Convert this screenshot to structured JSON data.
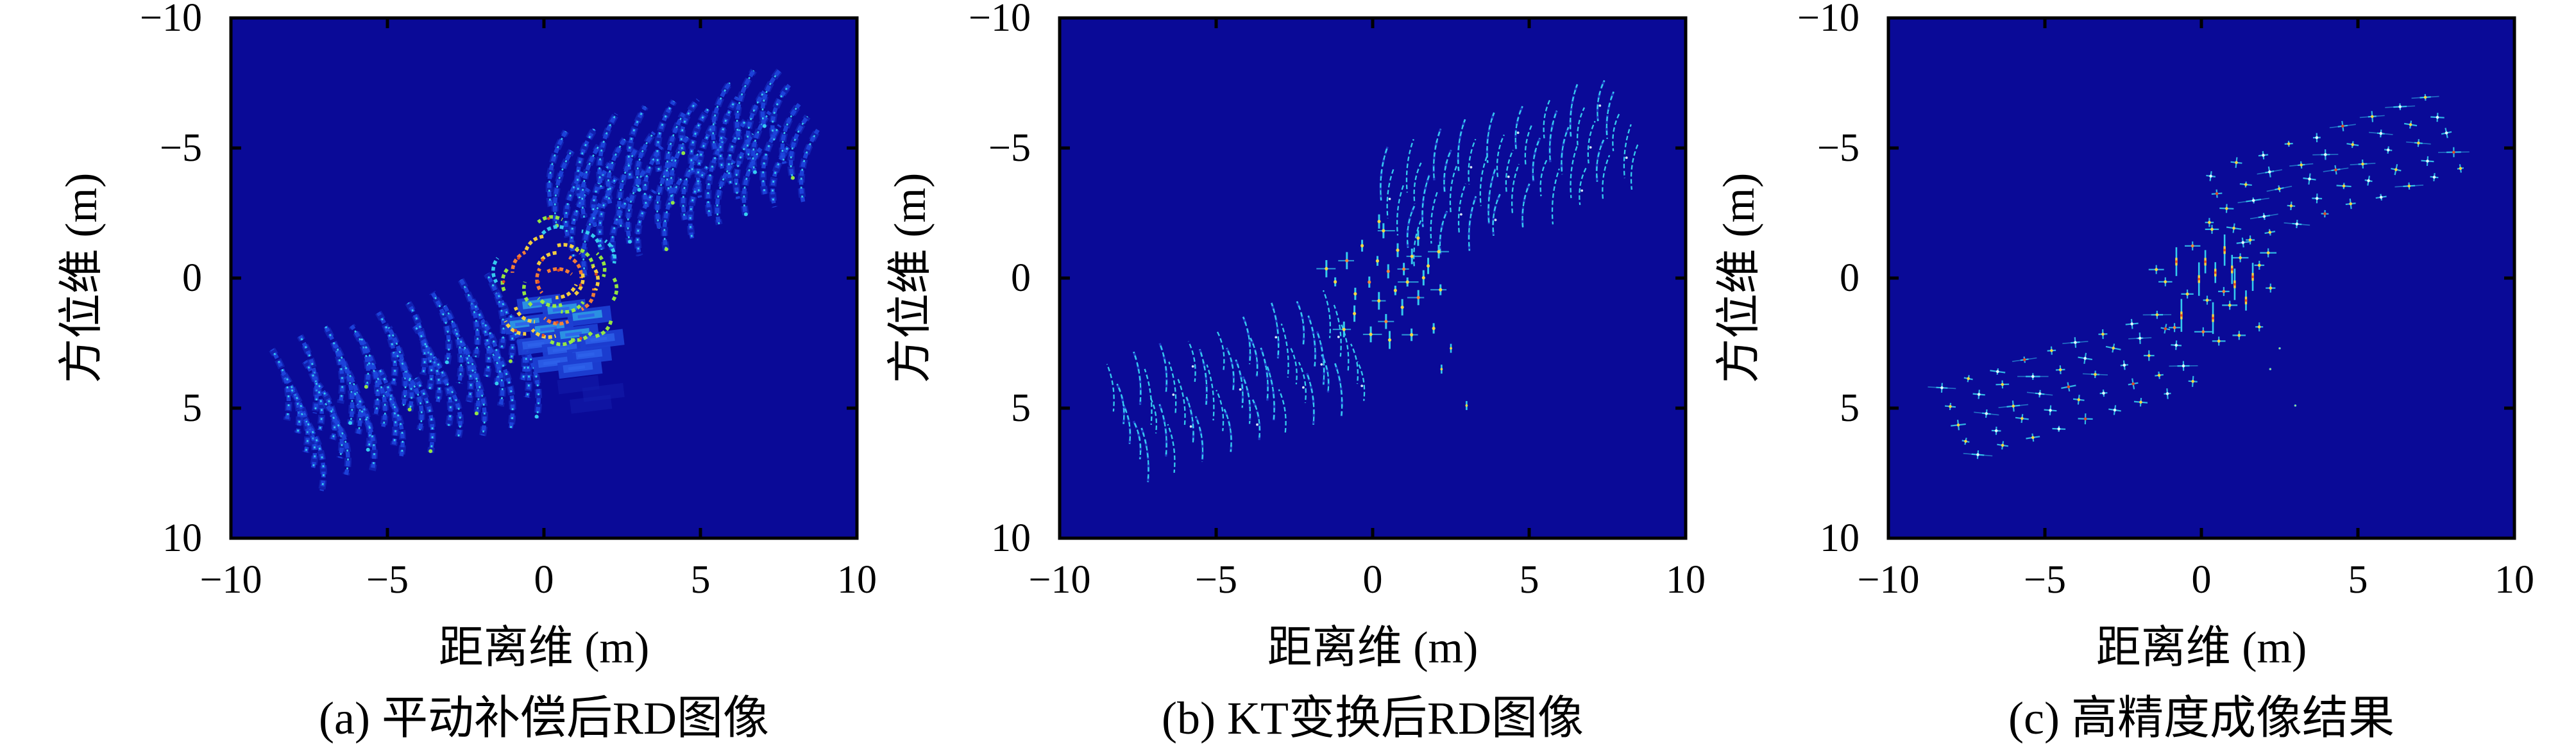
{
  "figure_title": "",
  "colors": {
    "background": "#ffffff",
    "plot_bg": "#0a0a97",
    "frame": "#000000",
    "text": "#000000",
    "blue": "#1d44dc",
    "blue2": "#2d62ea",
    "cyan": "#38d6f2",
    "green": "#9cf03c",
    "yellow": "#ffd83a",
    "orange": "#ff8432",
    "red": "#e8481f",
    "white": "#eaffff",
    "block": "#1c3fd2",
    "faint": "#141dab"
  },
  "panels": [
    {
      "id": "a",
      "caption": "(a) 平动补偿后RD图像",
      "xlabel": "距离维 (m)",
      "ylabel": "方位维 (m)",
      "xticklabels": [
        "−10",
        "−5",
        "0",
        "5",
        "10"
      ],
      "yticklabels": [
        "−10",
        "−5",
        "0",
        "5",
        "10"
      ],
      "mode": "defocused"
    },
    {
      "id": "b",
      "caption": "(b) KT变换后RD图像",
      "xlabel": "距离维 (m)",
      "ylabel": "方位维 (m)",
      "xticklabels": [
        "−10",
        "−5",
        "0",
        "5",
        "10"
      ],
      "yticklabels": [
        "−10",
        "−5",
        "0",
        "5",
        "10"
      ],
      "mode": "semi-focused"
    },
    {
      "id": "c",
      "caption": "(c) 高精度成像结果",
      "xlabel": "距离维 (m)",
      "ylabel": "方位维 (m)",
      "xticklabels": [
        "−10",
        "−5",
        "0",
        "5",
        "10"
      ],
      "yticklabels": [
        "−10",
        "−5",
        "0",
        "5",
        "10"
      ],
      "mode": "focused"
    }
  ],
  "chart_data": {
    "type": "scatter",
    "title": "ISAR imaging results of a satellite-like target at three processing stages",
    "xlabel": "距离维 (m)",
    "ylabel": "方位维 (m)",
    "xlim": [
      -10,
      10
    ],
    "ylim_top_to_bottom": [
      -10,
      10
    ],
    "xticks": [
      -10,
      -5,
      0,
      5,
      10
    ],
    "yticks": [
      -10,
      -5,
      0,
      5,
      10
    ],
    "grid": false,
    "legend": null,
    "colormap": "jet-like, dark navy background, cyan/green/yellow/red hot spots",
    "render_seed": 13,
    "scatterers": {
      "wing_upper_right": [
        [
          1.35,
          -1.35,
          0.45
        ],
        [
          2.22,
          -1.71,
          0.7
        ],
        [
          3.09,
          -2.07,
          0.55
        ],
        [
          3.96,
          -2.43,
          0.9
        ],
        [
          4.83,
          -2.79,
          0.6
        ],
        [
          5.7,
          -3.15,
          0.4
        ],
        [
          6.57,
          -3.51,
          0.8
        ],
        [
          7.44,
          -3.87,
          0.5
        ],
        [
          8.31,
          -4.23,
          0.65
        ],
        [
          1.07,
          -2.01,
          0.6
        ],
        [
          1.94,
          -2.37,
          0.4
        ],
        [
          2.81,
          -2.73,
          0.8
        ],
        [
          3.68,
          -3.09,
          0.5
        ],
        [
          4.55,
          -3.45,
          0.65
        ],
        [
          5.42,
          -3.81,
          0.45
        ],
        [
          6.29,
          -4.17,
          0.7
        ],
        [
          7.16,
          -4.53,
          0.55
        ],
        [
          8.03,
          -4.89,
          0.9
        ],
        [
          0.79,
          -2.67,
          0.65
        ],
        [
          1.66,
          -3.03,
          0.45
        ],
        [
          2.53,
          -3.39,
          0.7
        ],
        [
          3.4,
          -3.75,
          0.55
        ],
        [
          4.27,
          -4.11,
          0.9
        ],
        [
          5.14,
          -4.47,
          0.6
        ],
        [
          6.01,
          -4.83,
          0.4
        ],
        [
          6.88,
          -5.19,
          0.8
        ],
        [
          7.75,
          -5.55,
          0.5
        ],
        [
          0.51,
          -3.33,
          0.9
        ],
        [
          1.38,
          -3.69,
          0.6
        ],
        [
          2.25,
          -4.05,
          0.4
        ],
        [
          3.12,
          -4.41,
          0.8
        ],
        [
          3.99,
          -4.77,
          0.5
        ],
        [
          4.86,
          -5.13,
          0.65
        ],
        [
          5.73,
          -5.49,
          0.45
        ],
        [
          6.6,
          -5.85,
          0.7
        ],
        [
          7.47,
          -6.21,
          0.55
        ],
        [
          0.23,
          -3.99,
          0.5
        ],
        [
          1.1,
          -4.35,
          0.65
        ],
        [
          1.97,
          -4.71,
          0.45
        ],
        [
          2.84,
          -5.07,
          0.7
        ],
        [
          3.71,
          -5.43,
          0.55
        ],
        [
          4.58,
          -5.79,
          0.9
        ],
        [
          5.45,
          -6.15,
          0.6
        ],
        [
          6.32,
          -6.51,
          0.4
        ],
        [
          7.19,
          -6.87,
          0.8
        ]
      ],
      "wing_lower_left": [
        [
          -1.35,
          1.35,
          0.65
        ],
        [
          -2.22,
          1.71,
          0.5
        ],
        [
          -3.09,
          2.07,
          0.8
        ],
        [
          -3.96,
          2.43,
          0.4
        ],
        [
          -4.83,
          2.79,
          0.6
        ],
        [
          -5.7,
          3.15,
          0.9
        ],
        [
          -6.57,
          3.51,
          0.55
        ],
        [
          -7.44,
          3.87,
          0.7
        ],
        [
          -8.31,
          4.23,
          0.45
        ],
        [
          -1.07,
          2.01,
          0.9
        ],
        [
          -1.94,
          2.37,
          0.55
        ],
        [
          -2.81,
          2.73,
          0.7
        ],
        [
          -3.68,
          3.09,
          0.45
        ],
        [
          -4.55,
          3.45,
          0.65
        ],
        [
          -5.42,
          3.81,
          0.5
        ],
        [
          -6.29,
          4.17,
          0.8
        ],
        [
          -7.16,
          4.53,
          0.4
        ],
        [
          -8.03,
          4.89,
          0.6
        ],
        [
          -0.79,
          2.67,
          0.5
        ],
        [
          -1.66,
          3.03,
          0.8
        ],
        [
          -2.53,
          3.39,
          0.45
        ],
        [
          -3.4,
          3.75,
          0.6
        ],
        [
          -4.27,
          4.11,
          0.9
        ],
        [
          -5.14,
          4.47,
          0.55
        ],
        [
          -6.01,
          4.83,
          0.7
        ],
        [
          -6.88,
          5.19,
          0.4
        ],
        [
          -7.75,
          5.55,
          0.65
        ],
        [
          -0.51,
          3.33,
          0.55
        ],
        [
          -1.38,
          3.69,
          0.7
        ],
        [
          -2.25,
          4.05,
          0.9
        ],
        [
          -3.12,
          4.41,
          0.45
        ],
        [
          -3.99,
          4.77,
          0.65
        ],
        [
          -4.86,
          5.13,
          0.4
        ],
        [
          -5.73,
          5.49,
          0.8
        ],
        [
          -6.6,
          5.85,
          0.5
        ],
        [
          -7.47,
          6.21,
          0.6
        ],
        [
          -0.23,
          3.99,
          0.8
        ],
        [
          -1.1,
          4.35,
          0.45
        ],
        [
          -1.97,
          4.71,
          0.65
        ],
        [
          -2.84,
          5.07,
          0.5
        ],
        [
          -3.71,
          5.43,
          0.9
        ],
        [
          -4.58,
          5.79,
          0.55
        ],
        [
          -5.45,
          6.15,
          0.7
        ],
        [
          -6.32,
          6.51,
          0.6
        ],
        [
          -7.19,
          6.87,
          0.4
        ]
      ],
      "center_body": [
        [
          -1.2,
          0.1,
          0.8
        ],
        [
          -0.8,
          -0.6,
          0.95
        ],
        [
          -0.5,
          0.6,
          0.75
        ],
        [
          -0.3,
          -1.3,
          0.85
        ],
        [
          -0.1,
          0.1,
          1.0
        ],
        [
          0.1,
          -0.7,
          0.9
        ],
        [
          0.2,
          0.9,
          0.8
        ],
        [
          0.3,
          -1.8,
          0.7
        ],
        [
          0.4,
          1.6,
          0.95
        ],
        [
          0.5,
          -0.2,
          1.0
        ],
        [
          0.7,
          0.5,
          0.85
        ],
        [
          0.8,
          -1.1,
          0.9
        ],
        [
          0.9,
          1.1,
          0.75
        ],
        [
          1.0,
          -0.4,
          1.0
        ],
        [
          1.1,
          0.2,
          0.9
        ],
        [
          1.3,
          -0.8,
          0.8
        ],
        [
          1.4,
          0.8,
          0.95
        ],
        [
          1.5,
          -1.5,
          0.7
        ],
        [
          1.6,
          0.0,
          0.9
        ],
        [
          1.8,
          -0.5,
          0.75
        ],
        [
          1.9,
          1.9,
          0.8
        ],
        [
          2.1,
          -1.0,
          0.7
        ],
        [
          0.0,
          2.1,
          0.85
        ],
        [
          -0.6,
          1.4,
          0.9
        ],
        [
          0.6,
          2.4,
          0.75
        ],
        [
          1.2,
          2.2,
          0.8
        ],
        [
          -1.5,
          -0.3,
          0.7
        ],
        [
          -0.9,
          1.9,
          0.85
        ],
        [
          2.2,
          0.4,
          0.75
        ],
        [
          0.2,
          -2.2,
          0.8
        ]
      ],
      "trail_outliers": [
        [
          2.5,
          2.7,
          0.8
        ],
        [
          3.0,
          4.9,
          0.85
        ],
        [
          2.2,
          3.5,
          0.6
        ]
      ],
      "defocus_blocks_panel_a": [
        [
          -0.15,
          1.0
        ],
        [
          0.65,
          1.2
        ],
        [
          1.45,
          1.45
        ],
        [
          -0.55,
          1.75
        ],
        [
          0.25,
          1.95
        ],
        [
          1.05,
          2.15
        ],
        [
          1.85,
          2.35
        ],
        [
          -0.15,
          2.55
        ],
        [
          0.65,
          2.75
        ],
        [
          1.45,
          2.95
        ],
        [
          0.35,
          3.25
        ],
        [
          1.15,
          3.45
        ]
      ],
      "ghost_blocks_panel_a": [
        [
          1.1,
          4.1
        ],
        [
          1.9,
          4.4
        ],
        [
          1.5,
          4.85
        ]
      ]
    },
    "panel_rendering": {
      "a": {
        "style": "azimuth-defocused curved streaks with bright swirl and speckled blocks at center",
        "streak_length_m": [
          2.0,
          3.2
        ]
      },
      "b": {
        "style": "thin partially-focused vertical streaks, small hot dots at center",
        "streak_length_m": [
          1.3,
          2.2
        ]
      },
      "c": {
        "style": "focused cross-shaped point responses, vertical hot streaks at center",
        "point_size_m": 0.3
      }
    }
  }
}
